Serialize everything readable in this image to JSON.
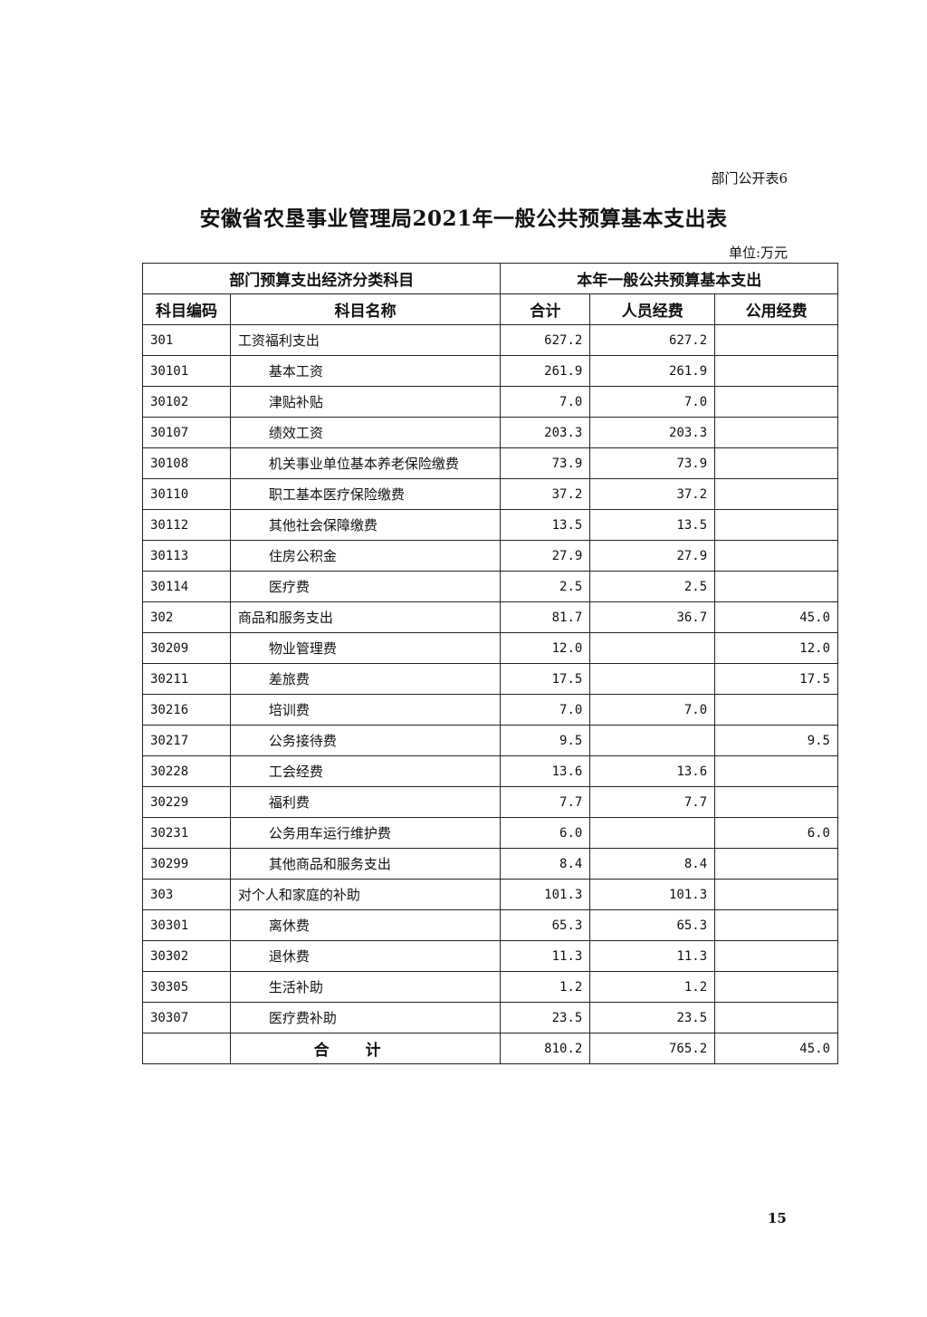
{
  "form_number": "部门公开表6",
  "title": "安徽省农垦事业管理局2021年一般公共预算基本支出表",
  "unit": "单位:万元",
  "table": {
    "group_headers": [
      "部门预算支出经济分类科目",
      "本年一般公共预算基本支出"
    ],
    "columns": [
      "科目编码",
      "科目名称",
      "合计",
      "人员经费",
      "公用经费"
    ],
    "rows": [
      {
        "code": "301",
        "name": "工资福利支出",
        "total": "627.2",
        "personnel": "627.2",
        "public": "",
        "level": 1
      },
      {
        "code": "30101",
        "name": "基本工资",
        "total": "261.9",
        "personnel": "261.9",
        "public": "",
        "level": 2
      },
      {
        "code": "30102",
        "name": "津贴补贴",
        "total": "7.0",
        "personnel": "7.0",
        "public": "",
        "level": 2
      },
      {
        "code": "30107",
        "name": "绩效工资",
        "total": "203.3",
        "personnel": "203.3",
        "public": "",
        "level": 2
      },
      {
        "code": "30108",
        "name": "机关事业单位基本养老保险缴费",
        "total": "73.9",
        "personnel": "73.9",
        "public": "",
        "level": 2
      },
      {
        "code": "30110",
        "name": "职工基本医疗保险缴费",
        "total": "37.2",
        "personnel": "37.2",
        "public": "",
        "level": 2
      },
      {
        "code": "30112",
        "name": "其他社会保障缴费",
        "total": "13.5",
        "personnel": "13.5",
        "public": "",
        "level": 2
      },
      {
        "code": "30113",
        "name": "住房公积金",
        "total": "27.9",
        "personnel": "27.9",
        "public": "",
        "level": 2
      },
      {
        "code": "30114",
        "name": "医疗费",
        "total": "2.5",
        "personnel": "2.5",
        "public": "",
        "level": 2
      },
      {
        "code": "302",
        "name": "商品和服务支出",
        "total": "81.7",
        "personnel": "36.7",
        "public": "45.0",
        "level": 1
      },
      {
        "code": "30209",
        "name": "物业管理费",
        "total": "12.0",
        "personnel": "",
        "public": "12.0",
        "level": 2
      },
      {
        "code": "30211",
        "name": "差旅费",
        "total": "17.5",
        "personnel": "",
        "public": "17.5",
        "level": 2
      },
      {
        "code": "30216",
        "name": "培训费",
        "total": "7.0",
        "personnel": "7.0",
        "public": "",
        "level": 2
      },
      {
        "code": "30217",
        "name": "公务接待费",
        "total": "9.5",
        "personnel": "",
        "public": "9.5",
        "level": 2
      },
      {
        "code": "30228",
        "name": "工会经费",
        "total": "13.6",
        "personnel": "13.6",
        "public": "",
        "level": 2
      },
      {
        "code": "30229",
        "name": "福利费",
        "total": "7.7",
        "personnel": "7.7",
        "public": "",
        "level": 2
      },
      {
        "code": "30231",
        "name": "公务用车运行维护费",
        "total": "6.0",
        "personnel": "",
        "public": "6.0",
        "level": 2
      },
      {
        "code": "30299",
        "name": "其他商品和服务支出",
        "total": "8.4",
        "personnel": "8.4",
        "public": "",
        "level": 2
      },
      {
        "code": "303",
        "name": "对个人和家庭的补助",
        "total": "101.3",
        "personnel": "101.3",
        "public": "",
        "level": 1
      },
      {
        "code": "30301",
        "name": "离休费",
        "total": "65.3",
        "personnel": "65.3",
        "public": "",
        "level": 2
      },
      {
        "code": "30302",
        "name": "退休费",
        "total": "11.3",
        "personnel": "11.3",
        "public": "",
        "level": 2
      },
      {
        "code": "30305",
        "name": "生活补助",
        "total": "1.2",
        "personnel": "1.2",
        "public": "",
        "level": 2
      },
      {
        "code": "30307",
        "name": "医疗费补助",
        "total": "23.5",
        "personnel": "23.5",
        "public": "",
        "level": 2
      }
    ],
    "total_row": {
      "label": "合计",
      "total": "810.2",
      "personnel": "765.2",
      "public": "45.0"
    }
  },
  "page_number": "15"
}
